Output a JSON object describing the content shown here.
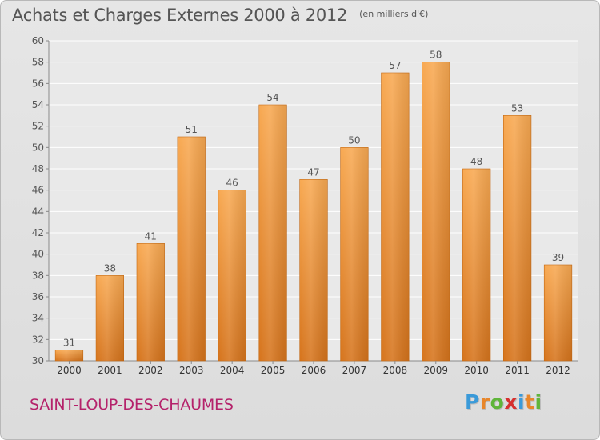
{
  "header": {
    "title": "Achats et Charges Externes 2000 à 2012",
    "subtitle": "(en milliers d'€)"
  },
  "commune": "SAINT-LOUP-DES-CHAUMES",
  "logo": {
    "letters": [
      "P",
      "r",
      "o",
      "x",
      "i",
      "t",
      "i"
    ],
    "colors": [
      "#3a9ad9",
      "#e8862a",
      "#5fb53a",
      "#d6312f",
      "#3a9ad9",
      "#e8862a",
      "#5fb53a"
    ]
  },
  "colors": {
    "bar_top": "#f8a952",
    "bar_bottom": "#d6741c",
    "text": "#555555",
    "commune": "#b5226b"
  },
  "chart_data": {
    "type": "bar",
    "title": "Achats et Charges Externes 2000 à 2012",
    "subtitle": "(en milliers d'€)",
    "categories": [
      "2000",
      "2001",
      "2002",
      "2003",
      "2004",
      "2005",
      "2006",
      "2007",
      "2008",
      "2009",
      "2010",
      "2011",
      "2012"
    ],
    "values": [
      31,
      38,
      41,
      51,
      46,
      54,
      47,
      50,
      57,
      58,
      48,
      53,
      39
    ],
    "ylim": [
      30,
      60
    ],
    "yticks": [
      30,
      32,
      34,
      36,
      38,
      40,
      42,
      44,
      46,
      48,
      50,
      52,
      54,
      56,
      58,
      60
    ],
    "grid": true,
    "data_labels": true
  }
}
